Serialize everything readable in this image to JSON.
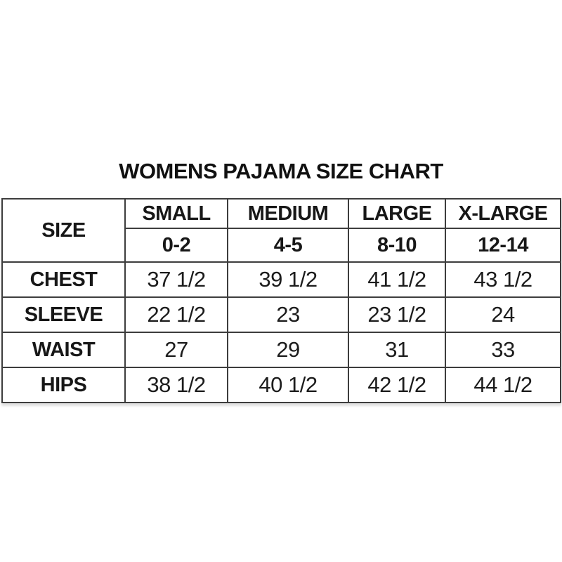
{
  "page": {
    "background_color": "#ffffff",
    "text_color": "#1c1c1c",
    "border_color": "#3d3d3d"
  },
  "title": "WOMENS PAJAMA SIZE CHART",
  "chart_data": {
    "type": "table",
    "title": "WOMENS PAJAMA SIZE CHART",
    "corner_label": "SIZE",
    "columns": [
      "SMALL",
      "MEDIUM",
      "LARGE",
      "X-LARGE"
    ],
    "size_ranges": [
      "0-2",
      "4-5",
      "8-10",
      "12-14"
    ],
    "rows": [
      {
        "label": "CHEST",
        "values": [
          "37 1/2",
          "39 1/2",
          "41 1/2",
          "43 1/2"
        ]
      },
      {
        "label": "SLEEVE",
        "values": [
          "22 1/2",
          "23",
          "23 1/2",
          "24"
        ]
      },
      {
        "label": "WAIST",
        "values": [
          "27",
          "29",
          "31",
          "33"
        ]
      },
      {
        "label": "HIPS",
        "values": [
          "38 1/2",
          "40 1/2",
          "42 1/2",
          "44 1/2"
        ]
      }
    ]
  }
}
